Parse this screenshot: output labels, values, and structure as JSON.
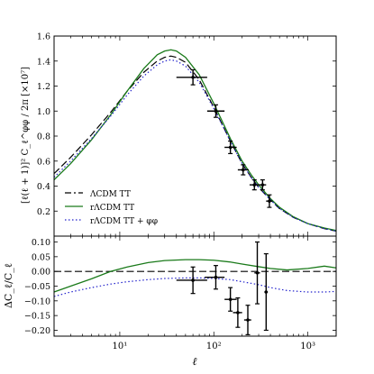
{
  "chart_data": [
    {
      "type": "line",
      "panel": "top",
      "ylabel": "[ℓ(ℓ + 1)]² C_ℓ^φφ / 2π [×10⁷]",
      "xlabel": "",
      "xscale": "log",
      "xlim": [
        2,
        2000
      ],
      "ylim": [
        0,
        1.6
      ],
      "yticks": [
        "0.2",
        "0.4",
        "0.6",
        "0.8",
        "1.0",
        "1.2",
        "1.4",
        "1.6"
      ],
      "grid": false,
      "legend_position": "lower-left",
      "series": [
        {
          "name": "ΛCDM TT",
          "style": "dashed",
          "color": "#000000",
          "x": [
            2,
            3,
            5,
            8,
            12,
            18,
            25,
            30,
            35,
            40,
            50,
            70,
            100,
            150,
            200,
            250,
            300,
            400,
            500,
            700,
            1000,
            1500,
            2000
          ],
          "y": [
            0.5,
            0.63,
            0.81,
            0.99,
            1.16,
            1.31,
            1.4,
            1.43,
            1.44,
            1.43,
            1.39,
            1.25,
            1.03,
            0.76,
            0.58,
            0.47,
            0.39,
            0.29,
            0.22,
            0.15,
            0.1,
            0.06,
            0.04
          ]
        },
        {
          "name": "rΛCDM TT",
          "style": "solid",
          "color": "#1a7a1a",
          "x": [
            2,
            3,
            5,
            8,
            12,
            18,
            25,
            30,
            35,
            40,
            50,
            70,
            100,
            150,
            200,
            250,
            300,
            400,
            500,
            700,
            1000,
            1500,
            2000
          ],
          "y": [
            0.45,
            0.58,
            0.77,
            0.97,
            1.16,
            1.34,
            1.45,
            1.48,
            1.49,
            1.48,
            1.43,
            1.29,
            1.06,
            0.78,
            0.6,
            0.49,
            0.41,
            0.3,
            0.23,
            0.155,
            0.1,
            0.065,
            0.045
          ]
        },
        {
          "name": "rΛCDM TT + φφ",
          "style": "dotted",
          "color": "#2222cc",
          "x": [
            2,
            3,
            5,
            8,
            12,
            18,
            25,
            30,
            35,
            40,
            50,
            70,
            100,
            150,
            200,
            250,
            300,
            400,
            500,
            700,
            1000,
            1500,
            2000
          ],
          "y": [
            0.47,
            0.6,
            0.78,
            0.96,
            1.13,
            1.28,
            1.37,
            1.4,
            1.41,
            1.4,
            1.36,
            1.23,
            1.02,
            0.76,
            0.58,
            0.47,
            0.39,
            0.29,
            0.22,
            0.15,
            0.1,
            0.06,
            0.04
          ]
        }
      ],
      "points": {
        "x": [
          60,
          105,
          150,
          205,
          270,
          330,
          390
        ],
        "x_low": [
          40,
          85,
          130,
          180,
          240,
          300,
          360
        ],
        "x_high": [
          85,
          130,
          175,
          235,
          300,
          360,
          420
        ],
        "y": [
          1.27,
          1.0,
          0.71,
          0.53,
          0.41,
          0.41,
          0.28
        ],
        "yerr": [
          0.06,
          0.05,
          0.05,
          0.04,
          0.04,
          0.04,
          0.05
        ]
      }
    },
    {
      "type": "line",
      "panel": "bottom",
      "xlabel": "ℓ",
      "ylabel": "ΔC_ℓ/C_ℓ",
      "xscale": "log",
      "xlim": [
        2,
        2000
      ],
      "ylim": [
        -0.22,
        0.12
      ],
      "xticks": [
        "10¹",
        "10²",
        "10³"
      ],
      "yticks": [
        "0.10",
        "0.05",
        "0.00",
        "−0.05",
        "−0.10",
        "−0.15",
        "−0.20"
      ],
      "grid": false,
      "series": [
        {
          "name": "ΛCDM TT",
          "style": "dashed",
          "color": "#000000",
          "x": [
            2,
            2000
          ],
          "y": [
            0,
            0
          ]
        },
        {
          "name": "rΛCDM TT",
          "style": "solid",
          "color": "#1a7a1a",
          "x": [
            2,
            3,
            5,
            8,
            12,
            20,
            30,
            50,
            70,
            100,
            150,
            200,
            300,
            400,
            600,
            1000,
            1500,
            2000
          ],
          "y": [
            -0.07,
            -0.05,
            -0.025,
            0.0,
            0.015,
            0.03,
            0.037,
            0.04,
            0.04,
            0.038,
            0.032,
            0.025,
            0.016,
            0.01,
            0.005,
            0.01,
            0.018,
            0.012
          ]
        },
        {
          "name": "rΛCDM TT + φφ",
          "style": "dotted",
          "color": "#2222cc",
          "x": [
            2,
            3,
            5,
            8,
            12,
            20,
            30,
            50,
            70,
            100,
            150,
            200,
            300,
            400,
            600,
            1000,
            1500,
            2000
          ],
          "y": [
            -0.085,
            -0.07,
            -0.055,
            -0.043,
            -0.035,
            -0.028,
            -0.024,
            -0.022,
            -0.022,
            -0.024,
            -0.028,
            -0.035,
            -0.045,
            -0.055,
            -0.065,
            -0.07,
            -0.07,
            -0.068
          ]
        }
      ],
      "points": {
        "x": [
          60,
          105,
          150,
          180,
          230,
          290,
          360
        ],
        "x_low": [
          40,
          80,
          130,
          160,
          210,
          270,
          345
        ],
        "x_high": [
          85,
          130,
          175,
          200,
          250,
          310,
          375
        ],
        "y": [
          -0.03,
          -0.02,
          -0.095,
          -0.14,
          -0.165,
          -0.005,
          -0.07
        ],
        "yerr": [
          0.045,
          0.04,
          0.04,
          0.05,
          0.05,
          0.105,
          0.13
        ]
      }
    }
  ]
}
